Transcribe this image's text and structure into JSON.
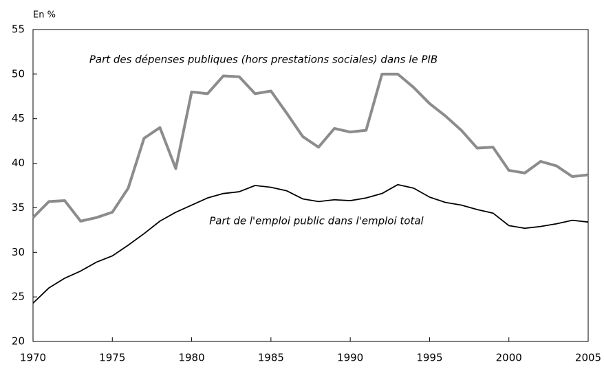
{
  "chart_data": {
    "type": "line",
    "y_label": "En %",
    "x": [
      1970,
      1971,
      1972,
      1973,
      1974,
      1975,
      1976,
      1977,
      1978,
      1979,
      1980,
      1981,
      1982,
      1983,
      1984,
      1985,
      1986,
      1987,
      1988,
      1989,
      1990,
      1991,
      1992,
      1993,
      1994,
      1995,
      1996,
      1997,
      1998,
      1999,
      2000,
      2001,
      2002,
      2003,
      2004,
      2005
    ],
    "series": [
      {
        "name": "Part des dépenses publiques (hors prestations sociales) dans le PIB",
        "color": "#8c8c8c",
        "values": [
          33.9,
          35.7,
          35.8,
          33.5,
          33.9,
          34.5,
          37.2,
          42.8,
          44.0,
          39.4,
          48.0,
          47.8,
          49.8,
          49.7,
          47.8,
          48.1,
          45.6,
          43.0,
          41.8,
          43.9,
          43.5,
          43.7,
          50.0,
          50.0,
          48.5,
          46.7,
          45.3,
          43.7,
          41.7,
          41.8,
          39.2,
          38.9,
          40.2,
          39.7,
          38.5,
          38.7
        ]
      },
      {
        "name": "Part de l'emploi public dans l'emploi total",
        "color": "#000000",
        "values": [
          24.3,
          26.0,
          27.1,
          27.9,
          28.9,
          29.6,
          30.8,
          32.1,
          33.5,
          34.5,
          35.3,
          36.1,
          36.6,
          36.8,
          37.5,
          37.3,
          36.9,
          36.0,
          35.7,
          35.9,
          35.8,
          36.1,
          36.6,
          37.6,
          37.2,
          36.2,
          35.6,
          35.3,
          34.8,
          34.4,
          33.0,
          32.7,
          32.9,
          33.2,
          33.6,
          33.4
        ]
      }
    ],
    "xlim": [
      1970,
      2005
    ],
    "xticks": [
      1970,
      1975,
      1980,
      1985,
      1990,
      1995,
      2000,
      2005
    ],
    "ylim": [
      20,
      55
    ],
    "yticks": [
      20,
      25,
      30,
      35,
      40,
      45,
      50,
      55
    ],
    "grid": false
  }
}
